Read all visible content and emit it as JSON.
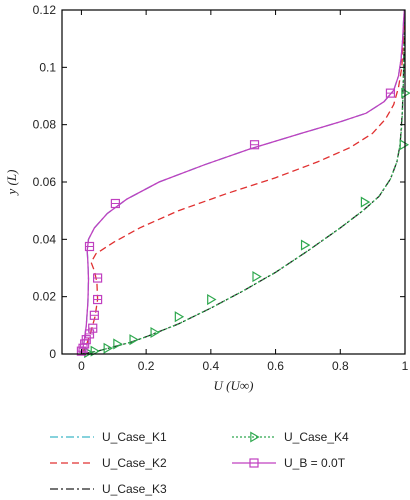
{
  "chart_data": {
    "type": "line",
    "title": "",
    "xlabel": "U (U∞)",
    "ylabel": "y (L)",
    "xlim": [
      -0.06,
      1.0
    ],
    "ylim": [
      0,
      0.12
    ],
    "x_ticks": [
      "0",
      "0.2",
      "0.4",
      "0.6",
      "0.8",
      "1"
    ],
    "y_ticks": [
      "0",
      "0.02",
      "0.04",
      "0.06",
      "0.08",
      "0.1",
      "0.12"
    ],
    "grid": false,
    "legend_placement": "below",
    "series": [
      {
        "name": "U_Case_K1",
        "color": "#3fb8c8",
        "dash": "8 3 2 3",
        "marker": "none",
        "points": [
          [
            0.0,
            0.0
          ],
          [
            0.008,
            0.004
          ],
          [
            0.015,
            0.01
          ],
          [
            0.02,
            0.018
          ],
          [
            0.022,
            0.026
          ],
          [
            0.02,
            0.032
          ],
          [
            0.018,
            0.036
          ],
          [
            0.022,
            0.04
          ],
          [
            0.04,
            0.044
          ],
          [
            0.08,
            0.049
          ],
          [
            0.14,
            0.054
          ],
          [
            0.24,
            0.06
          ],
          [
            0.38,
            0.066
          ],
          [
            0.52,
            0.0715
          ],
          [
            0.68,
            0.077
          ],
          [
            0.8,
            0.081
          ],
          [
            0.88,
            0.084
          ],
          [
            0.935,
            0.088
          ],
          [
            0.965,
            0.092
          ],
          [
            0.98,
            0.097
          ],
          [
            0.988,
            0.103
          ],
          [
            0.993,
            0.11
          ],
          [
            0.996,
            0.117
          ],
          [
            0.998,
            0.12
          ]
        ]
      },
      {
        "name": "U_Case_K2",
        "color": "#e03030",
        "dash": "7 4",
        "marker": "none",
        "points": [
          [
            0.0,
            0.0
          ],
          [
            0.015,
            0.003
          ],
          [
            0.03,
            0.008
          ],
          [
            0.042,
            0.013
          ],
          [
            0.05,
            0.019
          ],
          [
            0.048,
            0.025
          ],
          [
            0.04,
            0.029
          ],
          [
            0.03,
            0.032
          ],
          [
            0.045,
            0.035
          ],
          [
            0.1,
            0.039
          ],
          [
            0.18,
            0.044
          ],
          [
            0.3,
            0.05
          ],
          [
            0.45,
            0.056
          ],
          [
            0.6,
            0.0615
          ],
          [
            0.73,
            0.067
          ],
          [
            0.83,
            0.072
          ],
          [
            0.9,
            0.077
          ],
          [
            0.94,
            0.082
          ],
          [
            0.965,
            0.087
          ],
          [
            0.98,
            0.093
          ],
          [
            0.99,
            0.1
          ],
          [
            0.995,
            0.11
          ],
          [
            0.998,
            0.12
          ]
        ]
      },
      {
        "name": "U_Case_K3",
        "color": "#222222",
        "dash": "8 3 2 3",
        "marker": "none",
        "points": [
          [
            0.0,
            0.0
          ],
          [
            0.05,
            0.001
          ],
          [
            0.1,
            0.0025
          ],
          [
            0.15,
            0.004
          ],
          [
            0.2,
            0.006
          ],
          [
            0.3,
            0.0105
          ],
          [
            0.4,
            0.016
          ],
          [
            0.5,
            0.022
          ],
          [
            0.6,
            0.0285
          ],
          [
            0.7,
            0.036
          ],
          [
            0.8,
            0.044
          ],
          [
            0.87,
            0.05
          ],
          [
            0.92,
            0.055
          ],
          [
            0.955,
            0.061
          ],
          [
            0.975,
            0.067
          ],
          [
            0.985,
            0.073
          ],
          [
            0.992,
            0.085
          ],
          [
            0.996,
            0.1
          ],
          [
            0.998,
            0.12
          ]
        ]
      },
      {
        "name": "U_Case_K4",
        "color": "#2fa84f",
        "dash": "2 2",
        "marker": "triangle",
        "points": [
          [
            0.0,
            0.0
          ],
          [
            0.05,
            0.001
          ],
          [
            0.1,
            0.0025
          ],
          [
            0.15,
            0.004
          ],
          [
            0.2,
            0.006
          ],
          [
            0.3,
            0.0105
          ],
          [
            0.4,
            0.016
          ],
          [
            0.5,
            0.022
          ],
          [
            0.6,
            0.0285
          ],
          [
            0.7,
            0.036
          ],
          [
            0.8,
            0.044
          ],
          [
            0.87,
            0.05
          ],
          [
            0.92,
            0.055
          ],
          [
            0.955,
            0.061
          ],
          [
            0.975,
            0.067
          ],
          [
            0.985,
            0.073
          ],
          [
            0.99,
            0.08
          ],
          [
            0.994,
            0.09
          ],
          [
            0.996,
            0.1
          ],
          [
            0.998,
            0.12
          ]
        ],
        "marker_points": [
          [
            0.02,
            0.0005
          ],
          [
            0.04,
            0.001
          ],
          [
            0.08,
            0.002
          ],
          [
            0.11,
            0.0035
          ],
          [
            0.16,
            0.005
          ],
          [
            0.225,
            0.0075
          ],
          [
            0.3,
            0.013
          ],
          [
            0.4,
            0.019
          ],
          [
            0.54,
            0.027
          ],
          [
            0.69,
            0.038
          ],
          [
            0.875,
            0.053
          ],
          [
            0.995,
            0.073
          ],
          [
            1.0,
            0.091
          ]
        ]
      },
      {
        "name": "U_B = 0.0T",
        "color": "#c040c0",
        "dash": "none",
        "marker": "square",
        "points": [
          [
            0.0,
            0.0
          ],
          [
            0.008,
            0.004
          ],
          [
            0.015,
            0.01
          ],
          [
            0.02,
            0.018
          ],
          [
            0.022,
            0.026
          ],
          [
            0.02,
            0.032
          ],
          [
            0.018,
            0.036
          ],
          [
            0.022,
            0.04
          ],
          [
            0.04,
            0.044
          ],
          [
            0.08,
            0.049
          ],
          [
            0.14,
            0.054
          ],
          [
            0.24,
            0.06
          ],
          [
            0.38,
            0.066
          ],
          [
            0.52,
            0.0715
          ],
          [
            0.68,
            0.077
          ],
          [
            0.8,
            0.081
          ],
          [
            0.88,
            0.084
          ],
          [
            0.935,
            0.088
          ],
          [
            0.965,
            0.092
          ],
          [
            0.98,
            0.097
          ],
          [
            0.988,
            0.103
          ],
          [
            0.993,
            0.11
          ],
          [
            0.996,
            0.117
          ],
          [
            0.998,
            0.12
          ]
        ],
        "marker_points": [
          [
            0.0,
            0.001
          ],
          [
            0.005,
            0.002
          ],
          [
            0.01,
            0.0035
          ],
          [
            0.015,
            0.005
          ],
          [
            0.025,
            0.007
          ],
          [
            0.035,
            0.009
          ],
          [
            0.04,
            0.0135
          ],
          [
            0.05,
            0.019
          ],
          [
            0.05,
            0.0265
          ],
          [
            0.025,
            0.0375
          ],
          [
            0.105,
            0.0525
          ],
          [
            0.535,
            0.073
          ],
          [
            0.955,
            0.091
          ]
        ]
      }
    ]
  }
}
